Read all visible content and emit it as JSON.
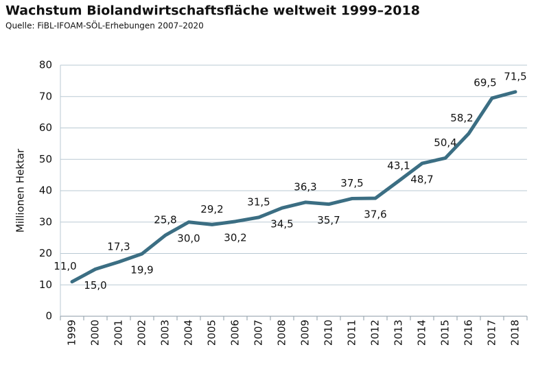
{
  "chart_data": {
    "type": "line",
    "title": "Wachstum Biolandwirtschaftsfläche weltweit 1999–2018",
    "subtitle": "Quelle: FiBL-IFOAM-SÖL-Erhebungen 2007–2020",
    "y_label": "Millionen Hektar",
    "categories": [
      "1999",
      "2000",
      "2001",
      "2002",
      "2003",
      "2004",
      "2005",
      "2006",
      "2007",
      "2008",
      "2009",
      "2010",
      "2011",
      "2012",
      "2013",
      "2014",
      "2015",
      "2016",
      "2017",
      "2018"
    ],
    "values": [
      11.0,
      15.0,
      17.3,
      19.9,
      25.8,
      30.0,
      29.2,
      30.2,
      31.5,
      34.5,
      36.3,
      35.7,
      37.5,
      37.6,
      43.1,
      48.7,
      50.4,
      58.2,
      69.5,
      71.5
    ],
    "value_labels": [
      "11,0",
      "15,0",
      "17,3",
      "19,9",
      "25,8",
      "30,0",
      "29,2",
      "30,2",
      "31,5",
      "34,5",
      "36,3",
      "35,7",
      "37,5",
      "37,6",
      "43,1",
      "48,7",
      "50,4",
      "58,2",
      "69,5",
      "71,5"
    ],
    "color": "#3b6e83",
    "ylim": [
      0,
      80
    ],
    "yticks": [
      0,
      10,
      20,
      30,
      40,
      50,
      60,
      70,
      80
    ],
    "grid": true
  }
}
